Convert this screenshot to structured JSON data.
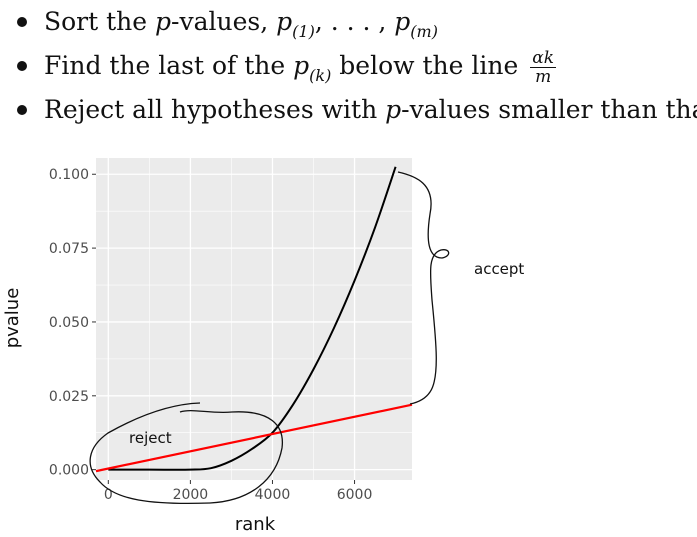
{
  "bullets": [
    {
      "prefix": "Sort the ",
      "math_p": "p",
      "text1": "-values, ",
      "seq_p1": "p",
      "seq_sub1": "(1)",
      "seq_mid": ", . . . , ",
      "seq_p2": "p",
      "seq_sub2": "(m)"
    },
    {
      "prefix": "Find the last of the ",
      "seq_p": "p",
      "seq_sub": "(k)",
      "text1": " below the line ",
      "frac_num": "αk",
      "frac_den": "m"
    },
    {
      "prefix": "Reject all hypotheses with ",
      "math_p": "p",
      "text1": "-values smaller than that"
    }
  ],
  "annotations": {
    "reject": "reject",
    "accept": "accept"
  },
  "chart_data": {
    "type": "line",
    "xlabel": "rank",
    "ylabel": "pvalue",
    "xlim": [
      -300,
      7400
    ],
    "ylim": [
      -0.0035,
      0.1055
    ],
    "x_ticks": [
      "0",
      "2000",
      "4000",
      "6000"
    ],
    "y_ticks": [
      "0.000",
      "0.025",
      "0.050",
      "0.075",
      "0.100"
    ],
    "grid": true,
    "series": [
      {
        "color": "#000000",
        "x": [
          0,
          1000,
          2000,
          2500,
          3000,
          3500,
          4000,
          4500,
          5000,
          5500,
          6000,
          6500,
          7000
        ],
        "y": [
          0.0,
          0.0,
          0.0,
          0.0005,
          0.003,
          0.007,
          0.0125,
          0.022,
          0.034,
          0.048,
          0.064,
          0.082,
          0.1025
        ]
      },
      {
        "color": "#ff0000",
        "x": [
          -300,
          7400
        ],
        "y": [
          -0.0005,
          0.022
        ]
      }
    ]
  },
  "colors": {
    "panel": "#ebebeb",
    "grid": "#ffffff",
    "line": "#000000",
    "threshold": "#ff0000"
  }
}
